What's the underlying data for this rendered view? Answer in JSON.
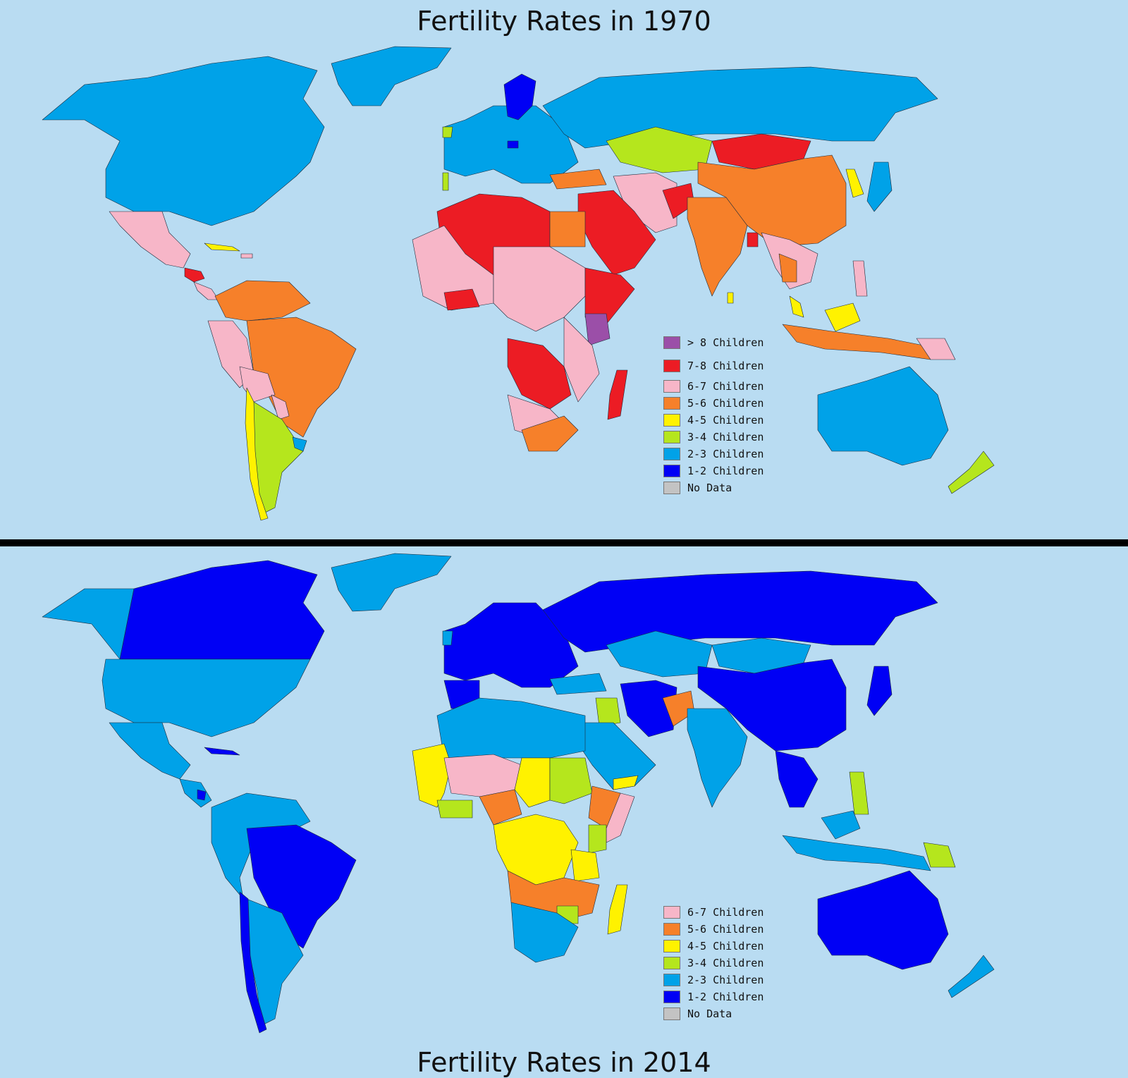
{
  "colors": {
    "ocean": "#b9dcf2",
    "over8": "#9b4fa8",
    "c7_8": "#ec1c24",
    "c6_7": "#f7b6c8",
    "c5_6": "#f6802a",
    "c4_5": "#fff200",
    "c3_4": "#b5e61d",
    "c2_3": "#00a2e8",
    "c1_2": "#0000f5",
    "nodata": "#c3c3c3"
  },
  "top": {
    "title": "Fertility Rates in 1970",
    "legend": [
      {
        "label": "> 8 Children",
        "color": "#9b4fa8"
      },
      {
        "label": "7-8 Children",
        "color": "#ec1c24"
      },
      {
        "label": "6-7 Children",
        "color": "#f7b6c8"
      },
      {
        "label": "5-6 Children",
        "color": "#f6802a"
      },
      {
        "label": "4-5 Children",
        "color": "#fff200"
      },
      {
        "label": "3-4 Children",
        "color": "#b5e61d"
      },
      {
        "label": "2-3 Children",
        "color": "#00a2e8"
      },
      {
        "label": "1-2 Children",
        "color": "#0000f5"
      },
      {
        "label": "No Data",
        "color": "#c3c3c3"
      }
    ]
  },
  "bottom": {
    "title": "Fertility Rates in 2014",
    "legend": [
      {
        "label": "6-7 Children",
        "color": "#f7b6c8"
      },
      {
        "label": "5-6 Children",
        "color": "#f6802a"
      },
      {
        "label": "4-5 Children",
        "color": "#fff200"
      },
      {
        "label": "3-4 Children",
        "color": "#b5e61d"
      },
      {
        "label": "2-3 Children",
        "color": "#00a2e8"
      },
      {
        "label": "1-2 Children",
        "color": "#0000f5"
      },
      {
        "label": "No Data",
        "color": "#c3c3c3"
      }
    ]
  }
}
